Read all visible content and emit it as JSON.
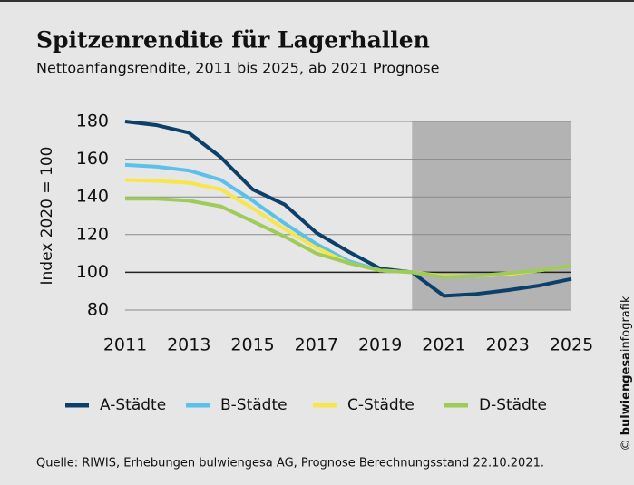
{
  "chart_data": {
    "type": "line",
    "title": "Spitzenrendite für Lagerhallen",
    "subtitle": "Nettoanfangsrendite, 2011 bis 2025, ab 2021 Prognose",
    "y_label": "Index 2020 = 100",
    "x": [
      2011,
      2012,
      2013,
      2014,
      2015,
      2016,
      2017,
      2018,
      2019,
      2020,
      2021,
      2022,
      2023,
      2024,
      2025
    ],
    "series": [
      {
        "name": "A-Städte",
        "color": "#0d3f6b",
        "values": [
          180,
          178,
          174,
          161,
          144,
          136,
          121,
          111,
          102,
          100,
          87.5,
          88.5,
          90.5,
          93,
          96.5
        ]
      },
      {
        "name": "B-Städte",
        "color": "#5bc0eb",
        "values": [
          157,
          156,
          154,
          149,
          138,
          126,
          115,
          106,
          101,
          100,
          97.5,
          98,
          99,
          101,
          103.5
        ]
      },
      {
        "name": "C-Städte",
        "color": "#f7e64b",
        "values": [
          149,
          148.5,
          147.5,
          144,
          134,
          123,
          113,
          105,
          101,
          100,
          98,
          98,
          99,
          101,
          103.5
        ]
      },
      {
        "name": "D-Städte",
        "color": "#9fcb5a",
        "values": [
          139,
          139,
          138,
          135,
          127,
          119,
          110,
          105,
          101,
          100,
          97.5,
          98,
          99.5,
          101,
          103.5
        ]
      }
    ],
    "xlim": [
      2011,
      2025
    ],
    "xticks": [
      2011,
      2013,
      2015,
      2017,
      2019,
      2021,
      2023,
      2025
    ],
    "ylim": [
      80,
      180
    ],
    "yticks": [
      80,
      100,
      120,
      140,
      160,
      180
    ],
    "grid": true,
    "shaded_xlim": [
      2020,
      2025
    ],
    "source": "Quelle: RIWIS, Erhebungen bulwiengesa AG, Prognose Berechnungsstand 22.10.2021.",
    "credit": {
      "symbol": "©",
      "brand": "bulwiengesa",
      "suffix": "infografik"
    }
  }
}
